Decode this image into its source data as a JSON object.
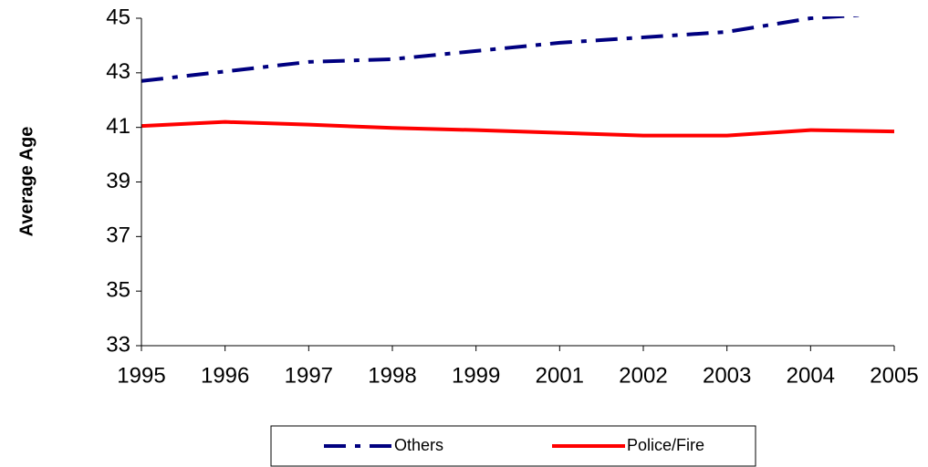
{
  "chart_data": {
    "type": "line",
    "y_label": "Average Age",
    "categories": [
      "1995",
      "1996",
      "1997",
      "1998",
      "1999",
      "2001",
      "2002",
      "2003",
      "2004",
      "2005"
    ],
    "series": [
      {
        "name": "Others",
        "color": "#000080",
        "values": [
          42.7,
          43.05,
          43.4,
          43.5,
          43.8,
          44.1,
          44.3,
          44.5,
          45.0,
          45.2
        ]
      },
      {
        "name": "Police/Fire",
        "color": "#ff0000",
        "values": [
          41.05,
          41.2,
          41.1,
          40.98,
          40.9,
          40.8,
          40.7,
          40.7,
          40.9,
          40.85
        ]
      }
    ],
    "ylim": [
      33,
      45
    ],
    "yticks": [
      33,
      35,
      37,
      39,
      41,
      43,
      45
    ],
    "grid": false,
    "legend": "bottom"
  }
}
